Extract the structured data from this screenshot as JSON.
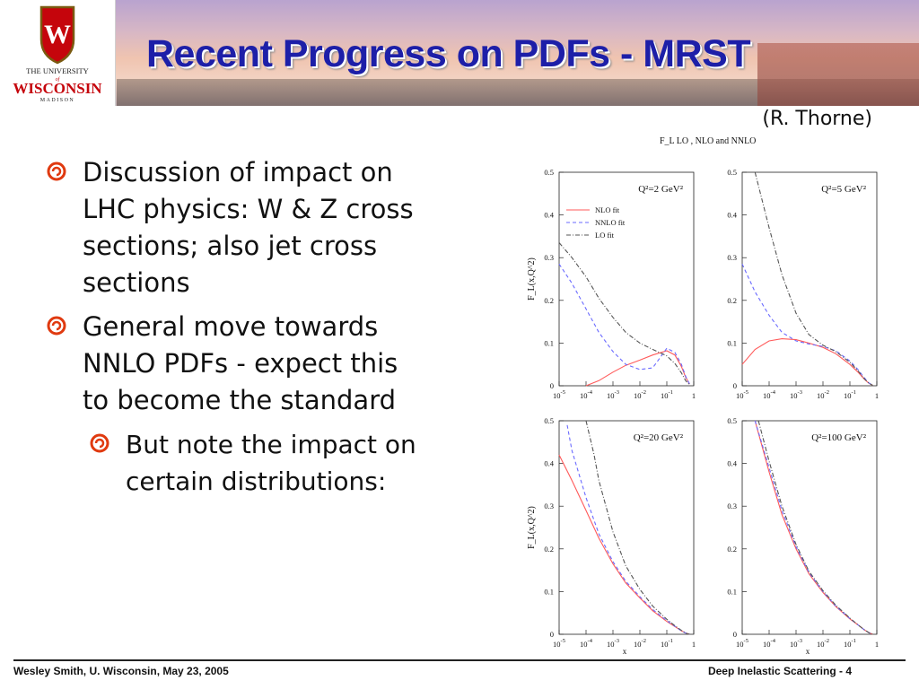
{
  "header": {
    "title": "Recent Progress on PDFs - MRST",
    "logo": {
      "line1": "THE UNIVERSITY",
      "line2": "of",
      "line3": "WISCONSIN",
      "line4": "MADISON",
      "crest_letter": "W"
    }
  },
  "credit": "(R. Thorne)",
  "bullets": [
    {
      "text": "Discussion of impact on LHC physics:  W & Z cross sections; also jet cross sections"
    },
    {
      "text": "General move towards NNLO PDFs - expect this to become the standard"
    },
    {
      "text": "But note the impact on certain distributions:"
    }
  ],
  "footer": {
    "left": "Wesley Smith, U. Wisconsin, May 23, 2005",
    "right": "Deep Inelastic Scattering  -  4"
  },
  "colors": {
    "title": "#1d1fa8",
    "nlo": "#ff5a5a",
    "nnlo": "#6a6aff",
    "lo": "#555555",
    "bullet_swirl": "#e03a10"
  },
  "chart_data": {
    "type": "line",
    "title": "F_L LO , NLO and NNLO",
    "ylabel": "F_L(x,Q^2)",
    "xlabel": "x",
    "xscale": "log",
    "xlim": [
      1e-05,
      1
    ],
    "ylim": [
      0,
      0.5
    ],
    "yticks": [
      "0",
      "0.1",
      "0.2",
      "0.3",
      "0.4",
      "0.5"
    ],
    "xticks": [
      "10^-5",
      "10^-4",
      "10^-3",
      "10^-2",
      "10^-1",
      "1"
    ],
    "legend": {
      "placement": "top-left",
      "panel": 0
    },
    "series_names": [
      "NLO fit",
      "NNLO fit",
      "LO fit"
    ],
    "panels": [
      {
        "label": "Q²=2 GeV²",
        "series": [
          {
            "name": "NLO fit",
            "x": [
              0.0001,
              0.0003,
              0.001,
              0.003,
              0.01,
              0.03,
              0.1,
              0.2,
              0.35,
              0.5,
              0.7
            ],
            "y": [
              0.0,
              0.012,
              0.032,
              0.048,
              0.06,
              0.072,
              0.082,
              0.072,
              0.045,
              0.02,
              0.004
            ]
          },
          {
            "name": "NNLO fit",
            "x": [
              1e-05,
              3e-05,
              0.0001,
              0.0003,
              0.001,
              0.003,
              0.01,
              0.03,
              0.06,
              0.1,
              0.2,
              0.35,
              0.5,
              0.7
            ],
            "y": [
              0.285,
              0.24,
              0.18,
              0.125,
              0.08,
              0.05,
              0.038,
              0.042,
              0.068,
              0.088,
              0.078,
              0.05,
              0.022,
              0.004
            ]
          },
          {
            "name": "LO fit",
            "x": [
              1e-05,
              3e-05,
              0.0001,
              0.0003,
              0.001,
              0.003,
              0.01,
              0.03,
              0.1,
              0.2,
              0.35,
              0.5,
              0.7
            ],
            "y": [
              0.335,
              0.3,
              0.255,
              0.205,
              0.16,
              0.125,
              0.1,
              0.085,
              0.07,
              0.052,
              0.03,
              0.012,
              0.002
            ]
          }
        ]
      },
      {
        "label": "Q²=5 GeV²",
        "series": [
          {
            "name": "NLO fit",
            "x": [
              1e-05,
              3e-05,
              0.0001,
              0.0003,
              0.001,
              0.003,
              0.01,
              0.03,
              0.1,
              0.2,
              0.35,
              0.5,
              0.7
            ],
            "y": [
              0.05,
              0.085,
              0.105,
              0.11,
              0.108,
              0.1,
              0.09,
              0.075,
              0.05,
              0.032,
              0.015,
              0.006,
              0.001
            ]
          },
          {
            "name": "NNLO fit",
            "x": [
              1e-05,
              3e-05,
              0.0001,
              0.0003,
              0.001,
              0.003,
              0.01,
              0.03,
              0.1,
              0.2,
              0.35,
              0.5,
              0.7
            ],
            "y": [
              0.285,
              0.22,
              0.165,
              0.125,
              0.105,
              0.098,
              0.092,
              0.082,
              0.058,
              0.038,
              0.018,
              0.007,
              0.001
            ]
          },
          {
            "name": "LO fit",
            "x": [
              3e-05,
              0.0001,
              0.0003,
              0.001,
              0.003,
              0.01,
              0.03,
              0.1,
              0.2,
              0.35,
              0.5,
              0.7
            ],
            "y": [
              0.5,
              0.37,
              0.26,
              0.17,
              0.12,
              0.095,
              0.08,
              0.055,
              0.035,
              0.016,
              0.006,
              0.001
            ]
          }
        ]
      },
      {
        "label": "Q²=20 GeV²",
        "series": [
          {
            "name": "NLO fit",
            "x": [
              1e-05,
              3e-05,
              0.0001,
              0.0003,
              0.001,
              0.003,
              0.01,
              0.03,
              0.1,
              0.2,
              0.35,
              0.5,
              0.7
            ],
            "y": [
              0.42,
              0.36,
              0.29,
              0.225,
              0.165,
              0.12,
              0.085,
              0.055,
              0.03,
              0.018,
              0.008,
              0.003,
              0.0
            ]
          },
          {
            "name": "NNLO fit",
            "x": [
              2e-05,
              3e-05,
              0.0001,
              0.0003,
              0.001,
              0.003,
              0.01,
              0.03,
              0.1,
              0.2,
              0.35,
              0.5,
              0.7
            ],
            "y": [
              0.49,
              0.43,
              0.32,
              0.235,
              0.17,
              0.124,
              0.088,
              0.058,
              0.032,
              0.019,
              0.008,
              0.003,
              0.0
            ]
          },
          {
            "name": "LO fit",
            "x": [
              0.0001,
              0.0002,
              0.0003,
              0.001,
              0.003,
              0.01,
              0.03,
              0.1,
              0.2,
              0.35,
              0.5,
              0.7
            ],
            "y": [
              0.5,
              0.42,
              0.36,
              0.24,
              0.16,
              0.105,
              0.066,
              0.035,
              0.02,
              0.009,
              0.003,
              0.0
            ]
          }
        ]
      },
      {
        "label": "Q²=100 GeV²",
        "series": [
          {
            "name": "NLO fit",
            "x": [
              3e-05,
              0.0001,
              0.0003,
              0.001,
              0.003,
              0.01,
              0.03,
              0.1,
              0.2,
              0.35,
              0.5,
              0.7
            ],
            "y": [
              0.5,
              0.38,
              0.28,
              0.2,
              0.142,
              0.098,
              0.065,
              0.036,
              0.022,
              0.01,
              0.004,
              0.0
            ]
          },
          {
            "name": "NNLO fit",
            "x": [
              3e-05,
              0.0001,
              0.0003,
              0.001,
              0.003,
              0.01,
              0.03,
              0.1,
              0.2,
              0.35,
              0.5,
              0.7
            ],
            "y": [
              0.5,
              0.39,
              0.29,
              0.205,
              0.145,
              0.1,
              0.066,
              0.037,
              0.022,
              0.01,
              0.004,
              0.0
            ]
          },
          {
            "name": "LO fit",
            "x": [
              4e-05,
              0.0001,
              0.0003,
              0.001,
              0.003,
              0.01,
              0.03,
              0.1,
              0.2,
              0.35,
              0.5,
              0.7
            ],
            "y": [
              0.5,
              0.405,
              0.3,
              0.21,
              0.148,
              0.102,
              0.068,
              0.038,
              0.022,
              0.01,
              0.004,
              0.0
            ]
          }
        ]
      }
    ]
  }
}
